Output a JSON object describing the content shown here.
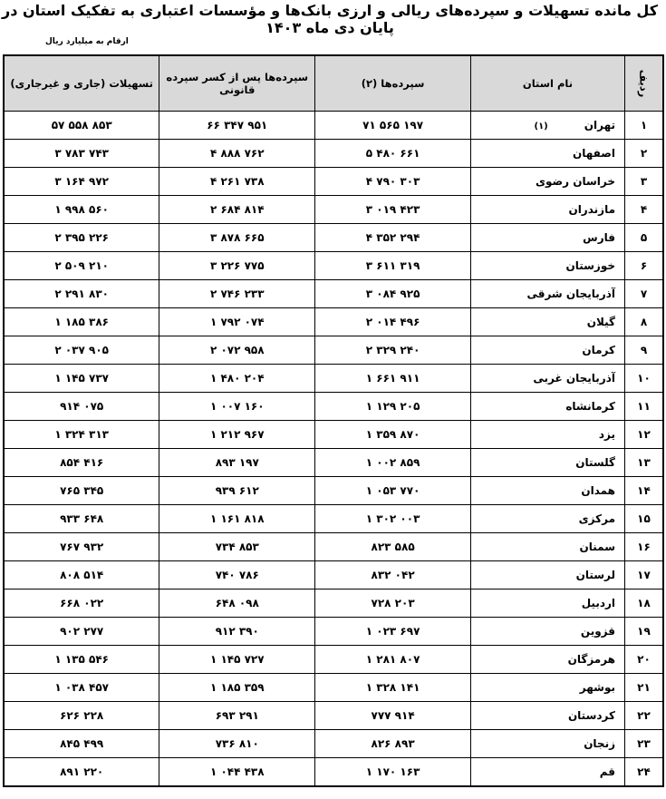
{
  "title": "کل مانده تسهیلات و سپرده‌های ریالی و ارزی بانک‌ها و مؤسسات اعتباری به تفکیک استان در پایان دی ماه ۱۴۰۳",
  "subtitle": "ارقام به میلیارد ریال",
  "table": {
    "headers": [
      "ردیف",
      "نام استان",
      "سپرده‌ها (۲)",
      "سپرده‌ها پس از کسر سپرده قانونی",
      "تسهیلات (جاری و غیرجاری)"
    ],
    "rows": [
      {
        "no": "۱",
        "province": "تهران",
        "note": "(۱)",
        "deposits": "۷۱ ۵۶۵ ۱۹۷",
        "net_deposits": "۶۶ ۳۴۷ ۹۵۱",
        "facilities": "۵۷ ۵۵۸ ۸۵۳"
      },
      {
        "no": "۲",
        "province": "اصفهان",
        "deposits": "۵ ۴۸۰ ۶۶۱",
        "net_deposits": "۴ ۸۸۸ ۷۶۲",
        "facilities": "۳ ۷۸۳ ۷۴۳"
      },
      {
        "no": "۳",
        "province": "خراسان رضوی",
        "deposits": "۴ ۷۹۰ ۳۰۳",
        "net_deposits": "۴ ۲۶۱ ۷۳۸",
        "facilities": "۳ ۱۶۴ ۹۷۲"
      },
      {
        "no": "۴",
        "province": "مازندران",
        "deposits": "۳ ۰۱۹ ۴۲۳",
        "net_deposits": "۲ ۶۸۴ ۸۱۴",
        "facilities": "۱ ۹۹۸ ۵۶۰"
      },
      {
        "no": "۵",
        "province": "فارس",
        "deposits": "۴ ۳۵۲ ۲۹۴",
        "net_deposits": "۳ ۸۷۸ ۶۶۵",
        "facilities": "۲ ۳۹۵ ۲۲۶"
      },
      {
        "no": "۶",
        "province": "خوزستان",
        "deposits": "۳ ۶۱۱ ۳۱۹",
        "net_deposits": "۳ ۲۲۶ ۷۷۵",
        "facilities": "۲ ۵۰۹ ۲۱۰"
      },
      {
        "no": "۷",
        "province": "آذربایجان شرقی",
        "deposits": "۳ ۰۸۴ ۹۲۵",
        "net_deposits": "۲ ۷۴۶ ۲۳۳",
        "facilities": "۲ ۲۹۱ ۸۳۰"
      },
      {
        "no": "۸",
        "province": "گیلان",
        "deposits": "۲ ۰۱۴ ۴۹۶",
        "net_deposits": "۱ ۷۹۲ ۰۷۴",
        "facilities": "۱ ۱۸۵ ۳۸۶"
      },
      {
        "no": "۹",
        "province": "کرمان",
        "deposits": "۲ ۳۲۹ ۲۴۰",
        "net_deposits": "۲ ۰۷۲ ۹۵۸",
        "facilities": "۲ ۰۳۷ ۹۰۵"
      },
      {
        "no": "۱۰",
        "province": "آذربایجان غربی",
        "deposits": "۱ ۶۶۱ ۹۱۱",
        "net_deposits": "۱ ۴۸۰ ۲۰۴",
        "facilities": "۱ ۱۴۵ ۷۳۷"
      },
      {
        "no": "۱۱",
        "province": "کرمانشاه",
        "deposits": "۱ ۱۲۹ ۲۰۵",
        "net_deposits": "۱ ۰۰۷ ۱۶۰",
        "facilities": "۹۱۴ ۰۷۵"
      },
      {
        "no": "۱۲",
        "province": "یزد",
        "deposits": "۱ ۳۵۹ ۸۷۰",
        "net_deposits": "۱ ۲۱۲ ۹۶۷",
        "facilities": "۱ ۳۲۴ ۳۱۳"
      },
      {
        "no": "۱۳",
        "province": "گلستان",
        "deposits": "۱ ۰۰۲ ۸۵۹",
        "net_deposits": "۸۹۳ ۱۹۷",
        "facilities": "۸۵۴ ۴۱۶"
      },
      {
        "no": "۱۴",
        "province": "همدان",
        "deposits": "۱ ۰۵۳ ۷۷۰",
        "net_deposits": "۹۳۹ ۶۱۲",
        "facilities": "۷۶۵ ۳۴۵"
      },
      {
        "no": "۱۵",
        "province": "مرکزی",
        "deposits": "۱ ۳۰۲ ۰۰۳",
        "net_deposits": "۱ ۱۶۱ ۸۱۸",
        "facilities": "۹۳۳ ۶۴۸"
      },
      {
        "no": "۱۶",
        "province": "سمنان",
        "deposits": "۸۲۳ ۵۸۵",
        "net_deposits": "۷۳۴ ۸۵۳",
        "facilities": "۷۶۷ ۹۳۲"
      },
      {
        "no": "۱۷",
        "province": "لرستان",
        "deposits": "۸۳۲ ۰۴۲",
        "net_deposits": "۷۴۰ ۷۸۶",
        "facilities": "۸۰۸ ۵۱۴"
      },
      {
        "no": "۱۸",
        "province": "اردبیل",
        "deposits": "۷۲۸ ۲۰۳",
        "net_deposits": "۶۴۸ ۰۹۸",
        "facilities": "۶۶۸ ۰۲۲"
      },
      {
        "no": "۱۹",
        "province": "قزوین",
        "deposits": "۱ ۰۲۳ ۶۹۷",
        "net_deposits": "۹۱۲ ۳۹۰",
        "facilities": "۹۰۲ ۲۷۷"
      },
      {
        "no": "۲۰",
        "province": "هرمزگان",
        "deposits": "۱ ۲۸۱ ۸۰۷",
        "net_deposits": "۱ ۱۴۵ ۷۲۷",
        "facilities": "۱ ۱۳۵ ۵۴۶"
      },
      {
        "no": "۲۱",
        "province": "بوشهر",
        "deposits": "۱ ۳۲۸ ۱۴۱",
        "net_deposits": "۱ ۱۸۵ ۳۵۹",
        "facilities": "۱ ۰۳۸ ۴۵۷"
      },
      {
        "no": "۲۲",
        "province": "کردستان",
        "deposits": "۷۷۷ ۹۱۴",
        "net_deposits": "۶۹۳ ۲۹۱",
        "facilities": "۶۲۶ ۲۲۸"
      },
      {
        "no": "۲۳",
        "province": "زنجان",
        "deposits": "۸۲۶ ۸۹۳",
        "net_deposits": "۷۳۶ ۸۱۰",
        "facilities": "۸۴۵ ۴۹۹"
      },
      {
        "no": "۲۴",
        "province": "قم",
        "deposits": "۱ ۱۷۰ ۱۶۳",
        "net_deposits": "۱ ۰۴۴ ۴۳۸",
        "facilities": "۸۹۱ ۲۲۰"
      }
    ]
  }
}
